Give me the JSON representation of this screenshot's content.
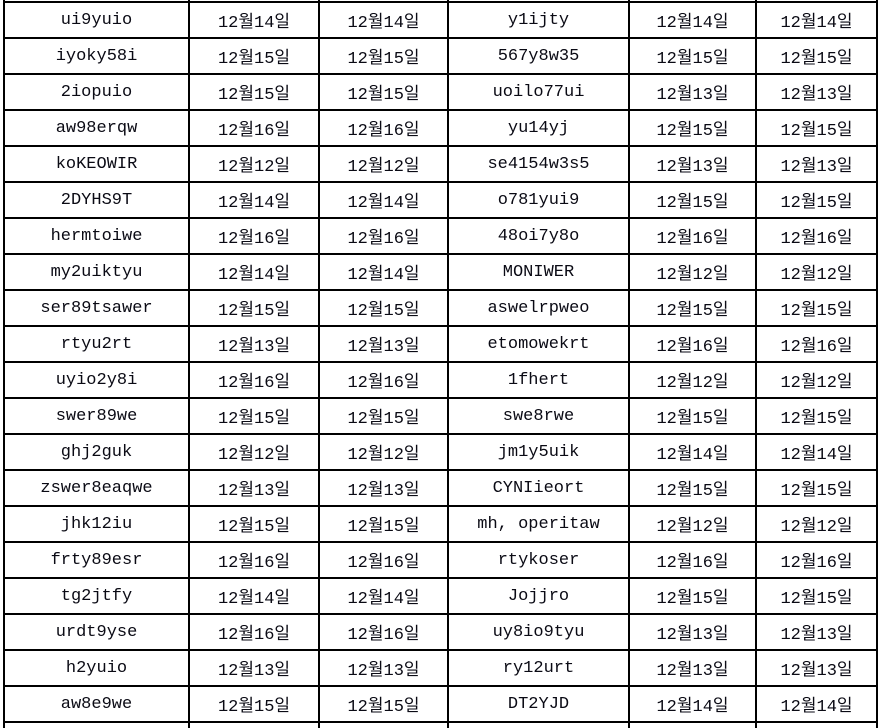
{
  "table": {
    "date_columns_format": "12월NN일",
    "rows": [
      [
        "ui9yuio",
        "12월14일",
        "12월14일",
        "y1ijty",
        "12월14일",
        "12월14일"
      ],
      [
        "iyoky58i",
        "12월15일",
        "12월15일",
        "567y8w35",
        "12월15일",
        "12월15일"
      ],
      [
        "2iopuio",
        "12월15일",
        "12월15일",
        "uoilo77ui",
        "12월13일",
        "12월13일"
      ],
      [
        "aw98erqw",
        "12월16일",
        "12월16일",
        "yu14yj",
        "12월15일",
        "12월15일"
      ],
      [
        "koKEOWIR",
        "12월12일",
        "12월12일",
        "se4154w3s5",
        "12월13일",
        "12월13일"
      ],
      [
        "2DYHS9T",
        "12월14일",
        "12월14일",
        "o781yui9",
        "12월15일",
        "12월15일"
      ],
      [
        "hermtoiwe",
        "12월16일",
        "12월16일",
        "48oi7y8o",
        "12월16일",
        "12월16일"
      ],
      [
        "my2uiktyu",
        "12월14일",
        "12월14일",
        "MONIWER",
        "12월12일",
        "12월12일"
      ],
      [
        "ser89tsawer",
        "12월15일",
        "12월15일",
        "aswelrpweo",
        "12월15일",
        "12월15일"
      ],
      [
        "rtyu2rt",
        "12월13일",
        "12월13일",
        "etomowekrt",
        "12월16일",
        "12월16일"
      ],
      [
        "uyio2y8i",
        "12월16일",
        "12월16일",
        "1fhert",
        "12월12일",
        "12월12일"
      ],
      [
        "swer89we",
        "12월15일",
        "12월15일",
        "swe8rwe",
        "12월15일",
        "12월15일"
      ],
      [
        "ghj2guk",
        "12월12일",
        "12월12일",
        "jm1y5uik",
        "12월14일",
        "12월14일"
      ],
      [
        "zswer8eaqwe",
        "12월13일",
        "12월13일",
        "CYNIieort",
        "12월15일",
        "12월15일"
      ],
      [
        "jhk12iu",
        "12월15일",
        "12월15일",
        "mh, operitaw",
        "12월12일",
        "12월12일"
      ],
      [
        "frty89esr",
        "12월16일",
        "12월16일",
        "rtykoser",
        "12월16일",
        "12월16일"
      ],
      [
        "tg2jtfy",
        "12월14일",
        "12월14일",
        "Jojjro",
        "12월15일",
        "12월15일"
      ],
      [
        "urdt9yse",
        "12월16일",
        "12월16일",
        "uy8io9tyu",
        "12월13일",
        "12월13일"
      ],
      [
        "h2yuio",
        "12월13일",
        "12월13일",
        "ry12urt",
        "12월13일",
        "12월13일"
      ],
      [
        "aw8e9we",
        "12월15일",
        "12월15일",
        "DT2YJD",
        "12월14일",
        "12월14일"
      ]
    ]
  },
  "colors": {
    "grid_line": "#000000",
    "cell_background": "#ffffff",
    "text": "#0a0a14"
  }
}
